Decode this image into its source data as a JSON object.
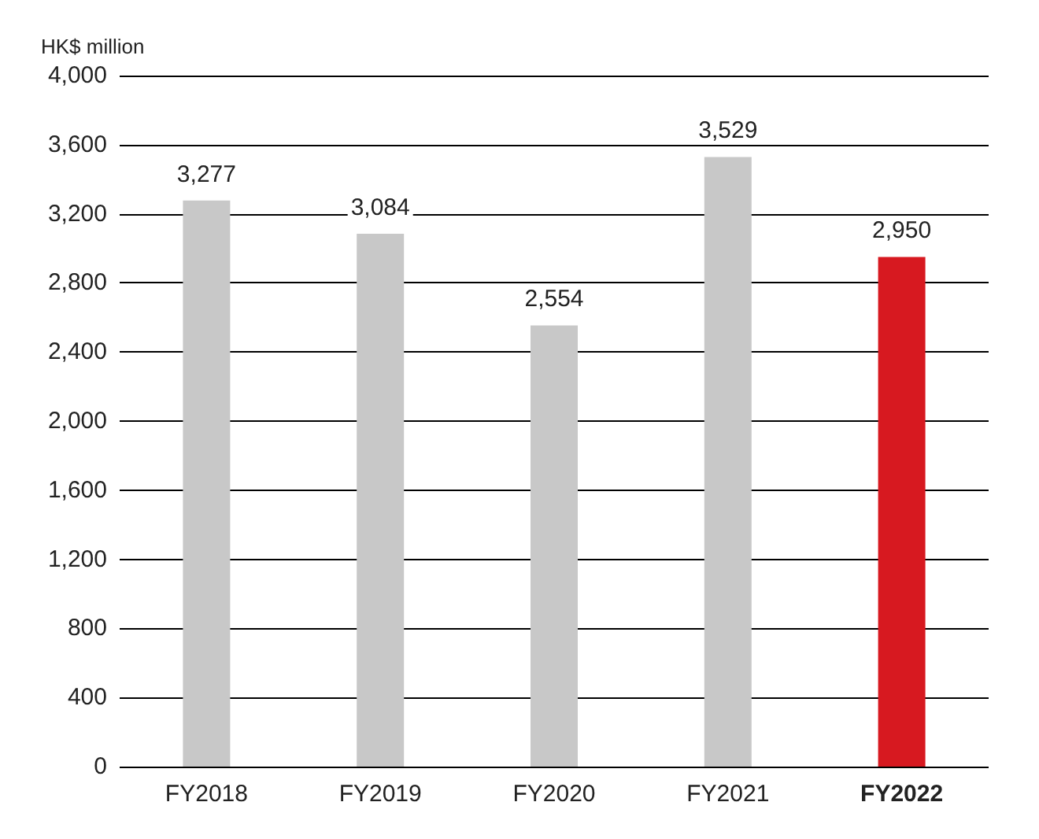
{
  "chart_data": {
    "type": "bar",
    "ylabel": "HK$ million",
    "categories": [
      "FY2018",
      "FY2019",
      "FY2020",
      "FY2021",
      "FY2022"
    ],
    "values": [
      3277,
      3084,
      2554,
      3529,
      2950
    ],
    "value_labels": [
      "3,277",
      "3,084",
      "2,554",
      "3,529",
      "2,950"
    ],
    "colors": [
      "#c8c8c8",
      "#c8c8c8",
      "#c8c8c8",
      "#c8c8c8",
      "#d71920"
    ],
    "ylim": [
      0,
      4000
    ],
    "yticks": [
      0,
      400,
      800,
      {
        "value": 1200,
        "label": "1,200"
      },
      {
        "value": 1600,
        "label": "1,600"
      },
      {
        "value": 2000,
        "label": "2,000"
      },
      {
        "value": 2400,
        "label": "2,400"
      },
      {
        "value": 2800,
        "label": "2,800"
      },
      {
        "value": 3200,
        "label": "3,200"
      },
      {
        "value": 3600,
        "label": "3,600"
      },
      {
        "value": 4000,
        "label": "4,000"
      }
    ],
    "grid": "y"
  }
}
